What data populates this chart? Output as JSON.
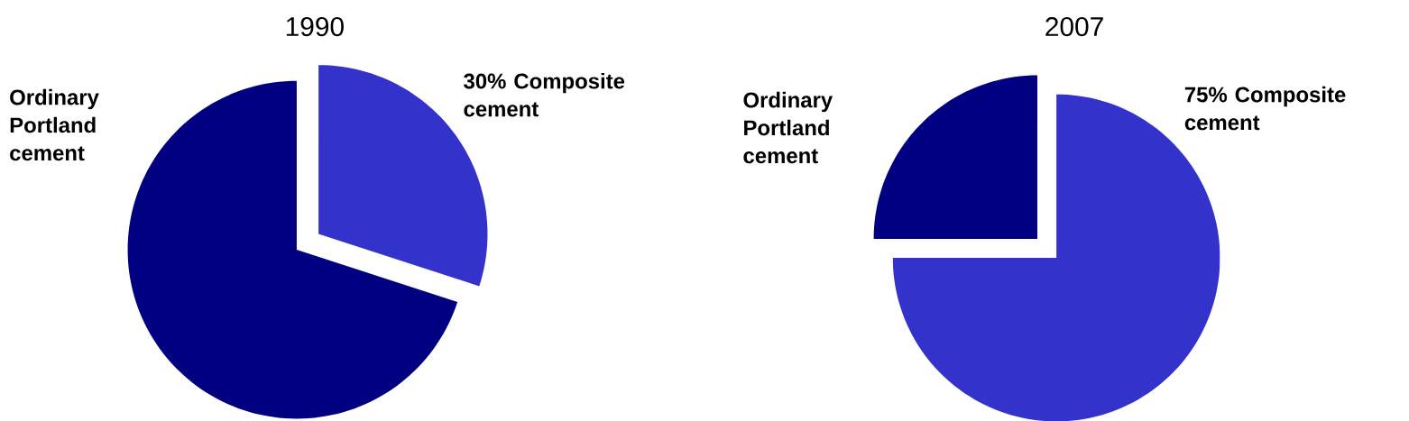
{
  "chart_data": [
    {
      "type": "pie",
      "title": "1990",
      "categories": [
        "Ordinary Portland cement",
        "Composite cement"
      ],
      "values": [
        70,
        30
      ],
      "colors": [
        "#000080",
        "#3333cc"
      ],
      "value_labels": [
        null,
        "30%"
      ]
    },
    {
      "type": "pie",
      "title": "2007",
      "categories": [
        "Ordinary Portland cement",
        "Composite cement"
      ],
      "values": [
        25,
        75
      ],
      "colors": [
        "#000080",
        "#3333cc"
      ],
      "value_labels": [
        null,
        "75%"
      ]
    }
  ]
}
